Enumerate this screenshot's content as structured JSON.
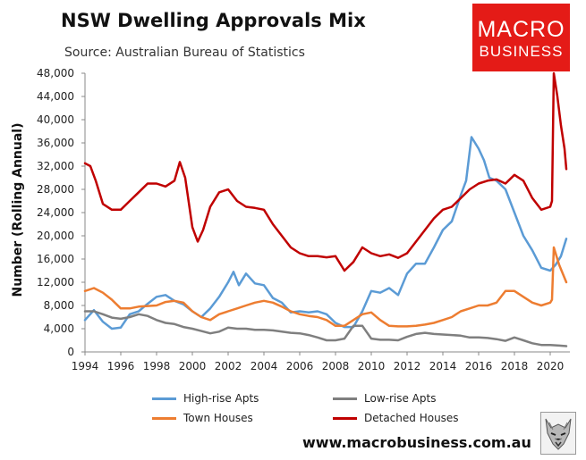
{
  "header": {
    "title": "NSW Dwelling Approvals Mix",
    "source": "Source: Australian Bureau of Statistics"
  },
  "logo": {
    "line1": "MACRO",
    "line2": "BUSINESS",
    "background": "#e41b17"
  },
  "footer": {
    "website": "www.macrobusiness.com.au",
    "icon": "wolf-logo-icon"
  },
  "chart_data": {
    "type": "line",
    "title": "NSW Dwelling Approvals Mix",
    "subtitle": "Source: Australian Bureau of Statistics",
    "xlabel": "",
    "ylabel": "Number (Rolling Annual)",
    "xlim": [
      1994,
      2021.1
    ],
    "ylim": [
      0,
      48000
    ],
    "xticks": [
      1994,
      1996,
      1998,
      2000,
      2002,
      2004,
      2006,
      2008,
      2010,
      2012,
      2014,
      2016,
      2018,
      2020
    ],
    "xtick_labels": [
      "1994",
      "1996",
      "1998",
      "2000",
      "2002",
      "2004",
      "2006",
      "2008",
      "2010",
      "2012",
      "2014",
      "2016",
      "2018",
      "2020"
    ],
    "yticks": [
      0,
      4000,
      8000,
      12000,
      16000,
      20000,
      24000,
      28000,
      32000,
      36000,
      40000,
      44000,
      48000
    ],
    "ytick_labels": [
      "0",
      "4,000",
      "8,000",
      "12,000",
      "16,000",
      "20,000",
      "24,000",
      "28,000",
      "32,000",
      "36,000",
      "40,000",
      "44,000",
      "48,000"
    ],
    "grid": false,
    "legend_position": "bottom",
    "series": [
      {
        "name": "High-rise Apts",
        "color": "#5b9bd5",
        "x": [
          1994,
          1994.5,
          1995,
          1995.5,
          1996,
          1996.5,
          1997,
          1997.5,
          1998,
          1998.5,
          1999,
          1999.5,
          2000,
          2000.5,
          2001,
          2001.5,
          2002,
          2002.3,
          2002.6,
          2003,
          2003.5,
          2004,
          2004.5,
          2005,
          2005.5,
          2006,
          2006.5,
          2007,
          2007.5,
          2008,
          2008.5,
          2009,
          2009.5,
          2010,
          2010.5,
          2011,
          2011.5,
          2012,
          2012.5,
          2013,
          2013.5,
          2014,
          2014.5,
          2015,
          2015.3,
          2015.6,
          2016,
          2016.3,
          2016.6,
          2017,
          2017.5,
          2018,
          2018.5,
          2019,
          2019.5,
          2020,
          2020.3,
          2020.6,
          2020.9
        ],
        "values": [
          5500,
          7200,
          5200,
          4000,
          4200,
          6500,
          7000,
          8300,
          9500,
          9800,
          8800,
          8200,
          7000,
          6000,
          7500,
          9500,
          12000,
          13800,
          11500,
          13500,
          11800,
          11500,
          9300,
          8500,
          6800,
          7000,
          6800,
          7000,
          6500,
          5000,
          4300,
          4300,
          7000,
          10500,
          10200,
          11000,
          9800,
          13500,
          15200,
          15200,
          18000,
          21000,
          22500,
          27000,
          29500,
          37000,
          35000,
          33000,
          30000,
          29500,
          28000,
          24000,
          20000,
          17500,
          14500,
          14000,
          15000,
          16500,
          19500
        ]
      },
      {
        "name": "Low-rise Apts",
        "color": "#7f7f7f",
        "x": [
          1994,
          1994.5,
          1995,
          1995.5,
          1996,
          1996.5,
          1997,
          1997.5,
          1998,
          1998.5,
          1999,
          1999.5,
          2000,
          2000.5,
          2001,
          2001.5,
          2002,
          2002.5,
          2003,
          2003.5,
          2004,
          2004.5,
          2005,
          2005.5,
          2006,
          2006.5,
          2007,
          2007.5,
          2008,
          2008.5,
          2009,
          2009.5,
          2010,
          2010.5,
          2011,
          2011.5,
          2012,
          2012.5,
          2013,
          2013.5,
          2014,
          2014.5,
          2015,
          2015.5,
          2016,
          2016.5,
          2017,
          2017.5,
          2018,
          2018.5,
          2019,
          2019.5,
          2020,
          2020.5,
          2020.9
        ],
        "values": [
          7000,
          7000,
          6500,
          5900,
          5700,
          6000,
          6500,
          6200,
          5500,
          5000,
          4800,
          4300,
          4000,
          3600,
          3200,
          3500,
          4200,
          4000,
          4000,
          3800,
          3800,
          3700,
          3500,
          3300,
          3200,
          2900,
          2500,
          2000,
          2000,
          2300,
          4500,
          4500,
          2300,
          2100,
          2100,
          2000,
          2600,
          3100,
          3300,
          3100,
          3000,
          2900,
          2800,
          2500,
          2500,
          2400,
          2200,
          1900,
          2500,
          2000,
          1500,
          1200,
          1200,
          1100,
          1000
        ]
      },
      {
        "name": "Town Houses",
        "color": "#ed7d31",
        "x": [
          1994,
          1994.5,
          1995,
          1995.5,
          1996,
          1996.5,
          1997,
          1997.5,
          1998,
          1998.5,
          1999,
          1999.5,
          2000,
          2000.5,
          2001,
          2001.5,
          2002,
          2002.5,
          2003,
          2003.5,
          2004,
          2004.5,
          2005,
          2005.5,
          2006,
          2006.5,
          2007,
          2007.5,
          2008,
          2008.5,
          2009,
          2009.5,
          2010,
          2010.5,
          2011,
          2011.5,
          2012,
          2012.5,
          2013,
          2013.5,
          2014,
          2014.5,
          2015,
          2015.5,
          2016,
          2016.5,
          2017,
          2017.5,
          2018,
          2018.5,
          2019,
          2019.5,
          2020,
          2020.1,
          2020.2,
          2020.5,
          2020.9
        ],
        "values": [
          10500,
          11000,
          10200,
          9000,
          7500,
          7500,
          7800,
          7900,
          8000,
          8600,
          8800,
          8500,
          7000,
          6000,
          5500,
          6500,
          7000,
          7500,
          8000,
          8500,
          8800,
          8500,
          7800,
          7000,
          6500,
          6200,
          6000,
          5500,
          4500,
          4500,
          5500,
          6500,
          6800,
          5500,
          4500,
          4400,
          4400,
          4500,
          4700,
          5000,
          5500,
          6000,
          7000,
          7500,
          8000,
          8000,
          8500,
          10500,
          10500,
          9500,
          8500,
          8000,
          8500,
          9000,
          18000,
          15000,
          12000
        ]
      },
      {
        "name": "Detached Houses",
        "color": "#c00000",
        "x": [
          1994,
          1994.3,
          1994.6,
          1995,
          1995.5,
          1996,
          1996.5,
          1997,
          1997.5,
          1998,
          1998.5,
          1999,
          1999.3,
          1999.6,
          2000,
          2000.3,
          2000.6,
          2001,
          2001.5,
          2002,
          2002.5,
          2003,
          2003.5,
          2004,
          2004.5,
          2005,
          2005.5,
          2006,
          2006.5,
          2007,
          2007.5,
          2008,
          2008.5,
          2009,
          2009.5,
          2010,
          2010.5,
          2011,
          2011.5,
          2012,
          2012.5,
          2013,
          2013.5,
          2014,
          2014.5,
          2015,
          2015.5,
          2016,
          2016.5,
          2017,
          2017.5,
          2018,
          2018.5,
          2019,
          2019.5,
          2020,
          2020.1,
          2020.2,
          2020.4,
          2020.6,
          2020.8,
          2020.9
        ],
        "values": [
          32500,
          32000,
          29500,
          25500,
          24500,
          24500,
          26000,
          27500,
          29000,
          29000,
          28500,
          29500,
          32700,
          30000,
          21500,
          19000,
          21000,
          25000,
          27500,
          28000,
          26000,
          25000,
          24800,
          24500,
          22000,
          20000,
          18000,
          17000,
          16500,
          16500,
          16300,
          16500,
          14000,
          15500,
          18000,
          17000,
          16500,
          16800,
          16200,
          17000,
          19000,
          21000,
          23000,
          24500,
          25000,
          26500,
          28000,
          29000,
          29500,
          29700,
          29000,
          30500,
          29500,
          26500,
          24500,
          25000,
          26000,
          48000,
          44000,
          39000,
          35000,
          31500
        ]
      }
    ]
  }
}
